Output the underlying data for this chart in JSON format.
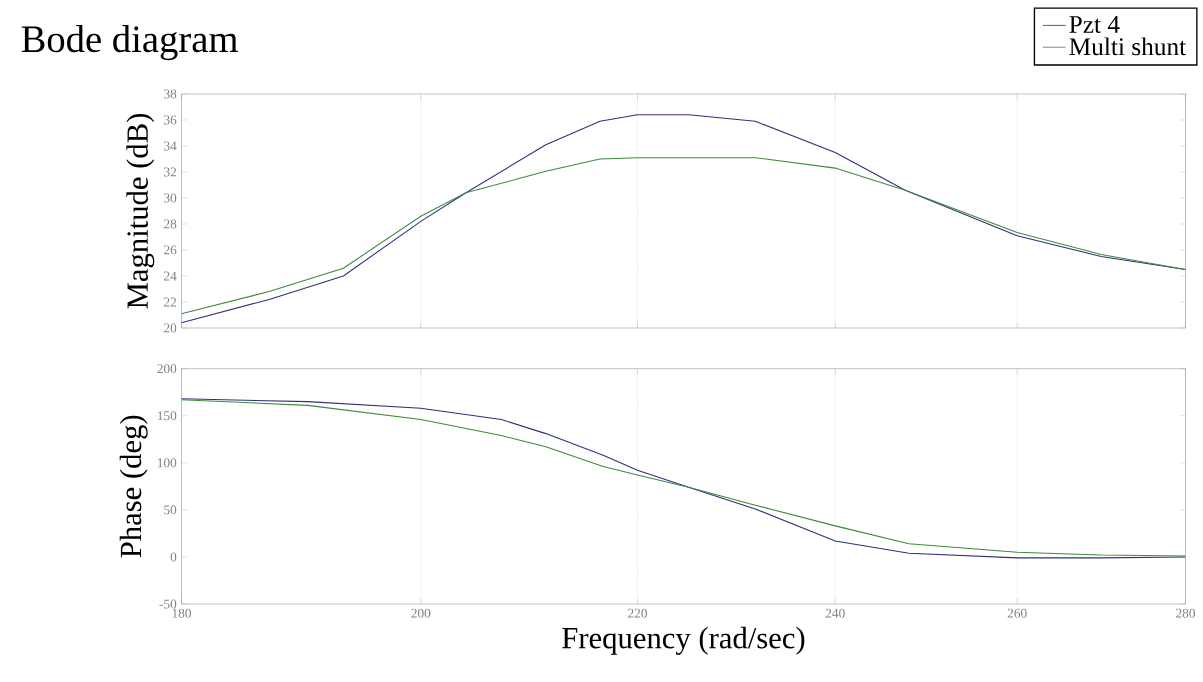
{
  "chart_data": [
    {
      "type": "line",
      "title": "Bode diagram",
      "ylabel": "Magnitude (dB)",
      "log": "x",
      "grid": "x",
      "legend": "top right",
      "tick_labels": "y",
      "xlim": [
        180,
        280
      ],
      "xticks": [
        180,
        200,
        220,
        240,
        260,
        280
      ],
      "ylim": [
        20,
        38
      ],
      "yticks": [
        20,
        22,
        24,
        26,
        28,
        30,
        32,
        34,
        36,
        38
      ],
      "series": [
        {
          "name": "Pzt 4",
          "color": "#30307a",
          "x": [
            180,
            187.1,
            193.3,
            200,
            204,
            211.3,
            216.4,
            220,
            225,
            231.7,
            240,
            247.5,
            260,
            269.8,
            280
          ],
          "values": [
            20.4,
            22.2,
            24.0,
            28.2,
            30.4,
            34.1,
            35.9,
            36.4,
            36.4,
            35.9,
            33.5,
            30.6,
            27.1,
            25.5,
            24.5
          ]
        },
        {
          "name": "Multi shunt",
          "color": "#3d8a3d",
          "x": [
            180,
            187.1,
            193.3,
            200,
            204,
            211.3,
            216.4,
            220,
            225,
            231.7,
            240,
            247.5,
            260,
            269.8,
            280
          ],
          "values": [
            21.1,
            22.8,
            24.6,
            28.6,
            30.4,
            32.05,
            33.0,
            33.1,
            33.1,
            33.1,
            32.3,
            30.6,
            27.35,
            25.65,
            24.5
          ]
        }
      ]
    },
    {
      "type": "line",
      "xlabel": "Frequency (rad/sec)",
      "ylabel": "Phase (deg)",
      "log": "x",
      "grid": "x",
      "xlim": [
        180,
        280
      ],
      "xticks": [
        180,
        200,
        220,
        240,
        260,
        280
      ],
      "ylim": [
        -50,
        200
      ],
      "yticks": [
        -50,
        0,
        50,
        100,
        150,
        200
      ],
      "series": [
        {
          "color": "#30307a",
          "x": [
            180,
            190.3,
            200,
            207.2,
            211.3,
            216.7,
            220,
            225,
            231.7,
            240,
            247.9,
            260,
            269.8,
            280
          ],
          "values": [
            168,
            165,
            158,
            146,
            131,
            108,
            92,
            74,
            51,
            17,
            4,
            -1,
            -1,
            0
          ]
        },
        {
          "color": "#3d8a3d",
          "x": [
            180,
            190.3,
            200,
            207.2,
            211.3,
            216.7,
            220,
            225,
            231.7,
            240,
            247.9,
            260,
            269.8,
            280
          ],
          "values": [
            167,
            161,
            146,
            129,
            117,
            96,
            87,
            74,
            55,
            33,
            14,
            5,
            2,
            1
          ]
        }
      ]
    }
  ]
}
